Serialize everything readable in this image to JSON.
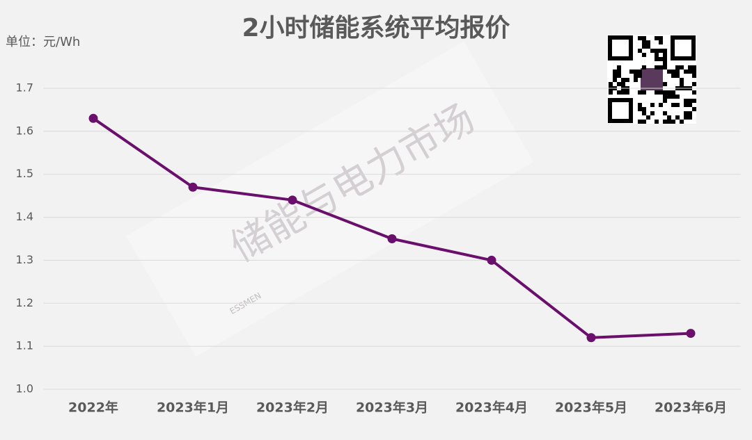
{
  "chart_data": {
    "type": "line",
    "title": "2小时储能系统平均报价",
    "y_label": "单位：元/Wh",
    "watermark": "储能与电力市场",
    "watermark_sub": "ESSMEN",
    "categories": [
      "2022年",
      "2023年1月",
      "2023年2月",
      "2023年3月",
      "2023年4月",
      "2023年5月",
      "2023年6月"
    ],
    "values": [
      1.63,
      1.47,
      1.44,
      1.35,
      1.3,
      1.12,
      1.13
    ],
    "color": "#6a0f6b",
    "ylim": [
      1.0,
      1.7
    ],
    "yticks": [
      {
        "value": 1.0,
        "label": "1.0"
      },
      1.1,
      1.2,
      1.3,
      1.4,
      1.5,
      1.6,
      1.7
    ],
    "grid": true
  }
}
